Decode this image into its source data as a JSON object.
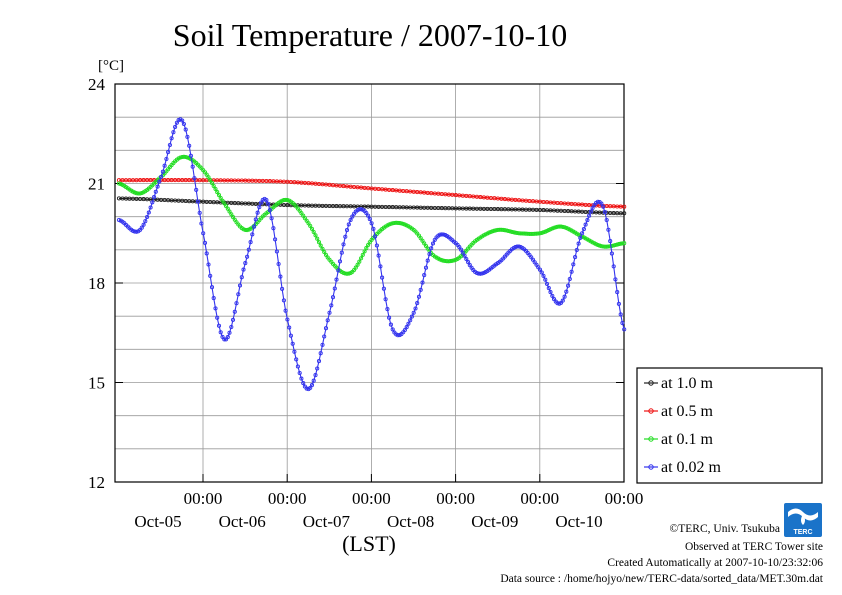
{
  "chart_data": {
    "type": "line",
    "title": "Soil Temperature / 2007-10-10",
    "unit_label": "[°C]",
    "xlabel": "(LST)",
    "ylim": [
      12,
      24
    ],
    "y_ticks": [
      12,
      15,
      18,
      21,
      24
    ],
    "x_range_days": [
      0,
      6
    ],
    "x_ticks": [
      {
        "time": "00:00",
        "date": "Oct-05"
      },
      {
        "time": "00:00",
        "date": "Oct-06"
      },
      {
        "time": "00:00",
        "date": "Oct-07"
      },
      {
        "time": "00:00",
        "date": "Oct-08"
      },
      {
        "time": "00:00",
        "date": "Oct-09"
      },
      {
        "time": "00:00",
        "date": "Oct-10"
      }
    ],
    "grid": true,
    "legend_position": "right",
    "series": [
      {
        "name": "at 1.0 m",
        "color": "#202020",
        "x": [
          0,
          1,
          2,
          3,
          4,
          5,
          6
        ],
        "y": [
          20.55,
          20.45,
          20.35,
          20.3,
          20.25,
          20.2,
          20.1
        ]
      },
      {
        "name": "at 0.5 m",
        "color": "#ee1111",
        "x": [
          0,
          1,
          2,
          3,
          4,
          5,
          6
        ],
        "y": [
          21.1,
          21.1,
          21.05,
          20.85,
          20.65,
          20.45,
          20.3
        ]
      },
      {
        "name": "at 0.1 m",
        "color": "#22dd22",
        "x": [
          0,
          0.25,
          0.5,
          0.75,
          1.0,
          1.25,
          1.5,
          1.75,
          2.0,
          2.25,
          2.5,
          2.75,
          3.0,
          3.25,
          3.5,
          3.75,
          4.0,
          4.25,
          4.5,
          4.75,
          5.0,
          5.25,
          5.5,
          5.75,
          6.0
        ],
        "y": [
          21.0,
          20.7,
          21.2,
          21.8,
          21.4,
          20.4,
          19.6,
          20.1,
          20.5,
          19.8,
          18.7,
          18.3,
          19.3,
          19.8,
          19.6,
          18.8,
          18.7,
          19.3,
          19.6,
          19.5,
          19.5,
          19.7,
          19.4,
          19.1,
          19.2
        ]
      },
      {
        "name": "at 0.02 m",
        "color": "#3333ee",
        "x": [
          0,
          0.25,
          0.5,
          0.75,
          1.0,
          1.25,
          1.5,
          1.75,
          2.0,
          2.25,
          2.5,
          2.75,
          3.0,
          3.25,
          3.5,
          3.75,
          4.0,
          4.25,
          4.5,
          4.75,
          5.0,
          5.25,
          5.5,
          5.75,
          6.0
        ],
        "y": [
          19.9,
          19.6,
          21.2,
          22.9,
          19.5,
          16.3,
          18.6,
          20.5,
          16.9,
          14.8,
          17.1,
          19.9,
          19.8,
          16.6,
          17.1,
          19.3,
          19.2,
          18.3,
          18.6,
          19.1,
          18.4,
          17.4,
          19.5,
          20.3,
          16.6
        ]
      }
    ]
  },
  "credits": {
    "copyright": "©TERC, Univ. Tsukuba",
    "observed": "Observed at TERC Tower site",
    "created": "Created Automatically at 2007-10-10/23:32:06",
    "source": "Data source : /home/hojyo/new/TERC-data/sorted_data/MET.30m.dat",
    "logo_text": "TERC"
  }
}
